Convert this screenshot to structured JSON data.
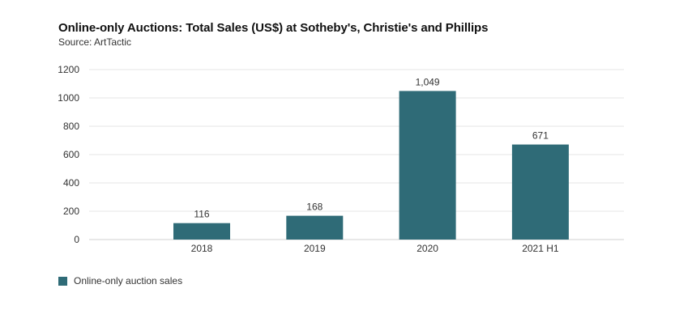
{
  "chart_data": {
    "type": "bar",
    "title": "Online-only Auctions: Total Sales (US$) at Sotheby's, Christie's and Phillips",
    "subtitle": "Source: ArtTactic",
    "categories": [
      "2018",
      "2019",
      "2020",
      "2021 H1"
    ],
    "series": [
      {
        "name": "Online-only auction sales",
        "values": [
          116,
          168,
          1049,
          671
        ],
        "labels": [
          "116",
          "168",
          "1,049",
          "671"
        ],
        "color": "#2f6b77"
      }
    ],
    "xlabel": "",
    "ylabel": "",
    "ylim": [
      0,
      1200
    ],
    "yticks": [
      0,
      200,
      400,
      600,
      800,
      1000,
      1200
    ],
    "grid": true,
    "legend_position": "bottom-left"
  }
}
